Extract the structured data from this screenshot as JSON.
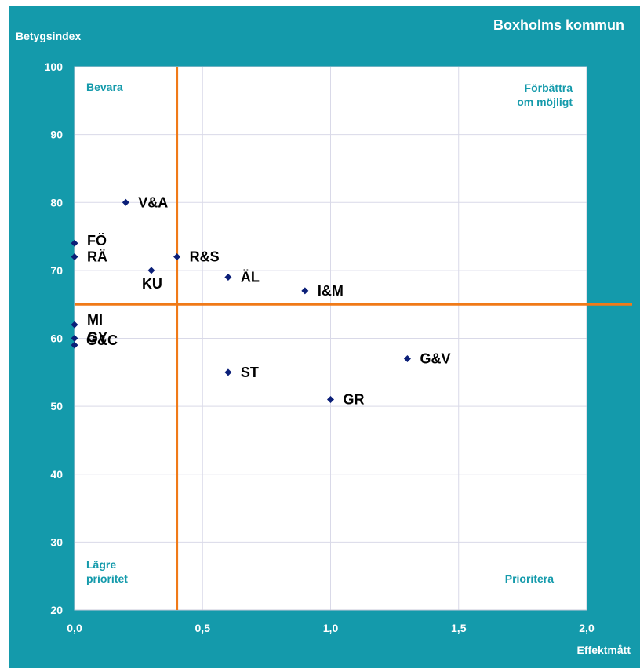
{
  "header": {
    "title": "Boxholms kommun",
    "ylabel": "Betygsindex",
    "xlabel": "Effektmått"
  },
  "quadrants": {
    "top_left": "Bevara",
    "top_right_line1": "Förbättra",
    "top_right_line2": "om möjligt",
    "bottom_left_line1": "Lägre",
    "bottom_left_line2": "prioritet",
    "bottom_right": "Prioritera"
  },
  "colors": {
    "background": "#149aab",
    "quadrant_text": "#149aab",
    "threshold_lines": "#f07a18",
    "marker": "#0b1f78",
    "gridline": "#d9d9e8"
  },
  "chart_data": {
    "type": "scatter",
    "title": "Boxholms kommun",
    "xlabel": "Effektmått",
    "ylabel": "Betygsindex",
    "xlim": [
      0,
      2
    ],
    "ylim": [
      20,
      100
    ],
    "x_ticks": [
      "0,0",
      "0,5",
      "1,0",
      "1,5",
      "2,0"
    ],
    "y_ticks": [
      "20",
      "30",
      "40",
      "50",
      "60",
      "70",
      "80",
      "90",
      "100"
    ],
    "grid": true,
    "threshold_x": 0.4,
    "threshold_y": 65,
    "points": [
      {
        "label": "V&A",
        "x": 0.2,
        "y": 80
      },
      {
        "label": "FÖ",
        "x": 0.0,
        "y": 74
      },
      {
        "label": "RÄ",
        "x": 0.0,
        "y": 72
      },
      {
        "label": "R&S",
        "x": 0.4,
        "y": 72
      },
      {
        "label": "KU",
        "x": 0.3,
        "y": 70
      },
      {
        "label": "ÄL",
        "x": 0.6,
        "y": 69
      },
      {
        "label": "I&M",
        "x": 0.9,
        "y": 67
      },
      {
        "label": "MI",
        "x": 0.0,
        "y": 62
      },
      {
        "label": "GY",
        "x": 0.0,
        "y": 60
      },
      {
        "label": "G&C",
        "x": 0.0,
        "y": 59
      },
      {
        "label": "G&V",
        "x": 1.3,
        "y": 57
      },
      {
        "label": "ST",
        "x": 0.6,
        "y": 55
      },
      {
        "label": "GR",
        "x": 1.0,
        "y": 51
      }
    ]
  }
}
